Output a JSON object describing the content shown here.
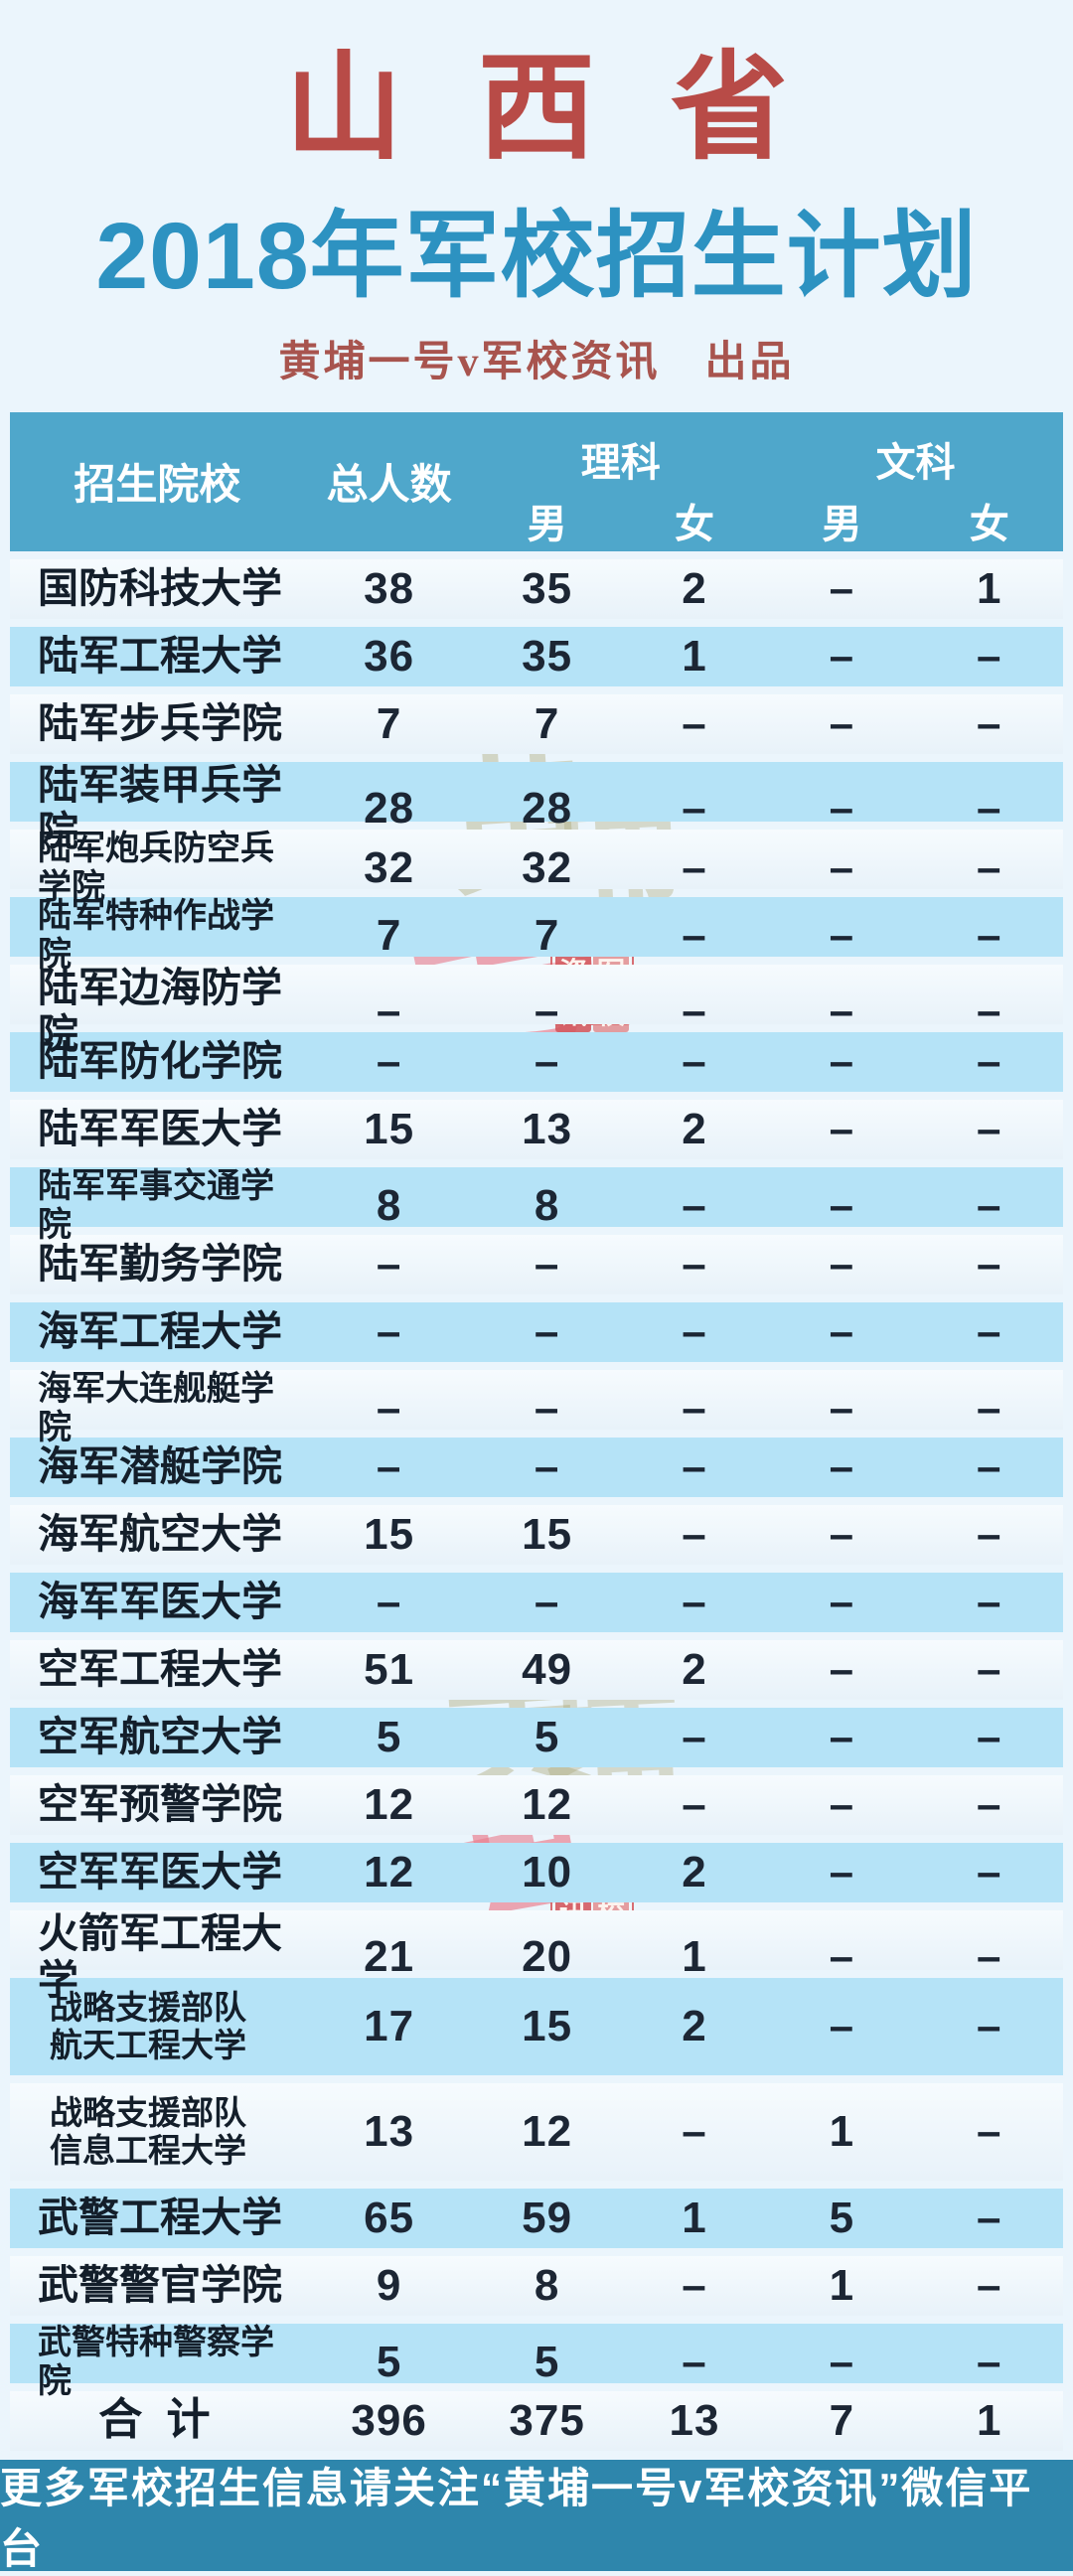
{
  "colors": {
    "page_bg": "#ebf5fc",
    "province_red": "#b84b47",
    "title_blue": "#2d92c1",
    "byline_red": "#a8544e",
    "table_header_bg": "#4fa7cb",
    "row_alt_bg": "#b5e3f7",
    "row_plain_bg": "#eef6fb",
    "footer_bg": "#2e86ac",
    "text_dark": "#1c2634"
  },
  "masthead": {
    "province": "山西省",
    "title": "2018年军校招生计划",
    "byline": "黄埔一号v军校资讯　出品"
  },
  "table": {
    "header": {
      "school": "招生院校",
      "total": "总人数",
      "science": "理科",
      "arts": "文科",
      "male": "男",
      "female": "女"
    },
    "rows": [
      {
        "school": "国防科技大学",
        "total": "38",
        "sci_male": "35",
        "sci_female": "2",
        "art_male": "–",
        "art_female": "1"
      },
      {
        "school": "陆军工程大学",
        "total": "36",
        "sci_male": "35",
        "sci_female": "1",
        "art_male": "–",
        "art_female": "–"
      },
      {
        "school": "陆军步兵学院",
        "total": "7",
        "sci_male": "7",
        "sci_female": "–",
        "art_male": "–",
        "art_female": "–"
      },
      {
        "school": "陆军装甲兵学院",
        "total": "28",
        "sci_male": "28",
        "sci_female": "–",
        "art_male": "–",
        "art_female": "–"
      },
      {
        "school": "陆军炮兵防空兵学院",
        "total": "32",
        "sci_male": "32",
        "sci_female": "–",
        "art_male": "–",
        "art_female": "–"
      },
      {
        "school": "陆军特种作战学院",
        "total": "7",
        "sci_male": "7",
        "sci_female": "–",
        "art_male": "–",
        "art_female": "–"
      },
      {
        "school": "陆军边海防学院",
        "total": "–",
        "sci_male": "–",
        "sci_female": "–",
        "art_male": "–",
        "art_female": "–"
      },
      {
        "school": "陆军防化学院",
        "total": "–",
        "sci_male": "–",
        "sci_female": "–",
        "art_male": "–",
        "art_female": "–"
      },
      {
        "school": "陆军军医大学",
        "total": "15",
        "sci_male": "13",
        "sci_female": "2",
        "art_male": "–",
        "art_female": "–"
      },
      {
        "school": "陆军军事交通学院",
        "total": "8",
        "sci_male": "8",
        "sci_female": "–",
        "art_male": "–",
        "art_female": "–"
      },
      {
        "school": "陆军勤务学院",
        "total": "–",
        "sci_male": "–",
        "sci_female": "–",
        "art_male": "–",
        "art_female": "–"
      },
      {
        "school": "海军工程大学",
        "total": "–",
        "sci_male": "–",
        "sci_female": "–",
        "art_male": "–",
        "art_female": "–"
      },
      {
        "school": "海军大连舰艇学院",
        "total": "–",
        "sci_male": "–",
        "sci_female": "–",
        "art_male": "–",
        "art_female": "–"
      },
      {
        "school": "海军潜艇学院",
        "total": "–",
        "sci_male": "–",
        "sci_female": "–",
        "art_male": "–",
        "art_female": "–"
      },
      {
        "school": "海军航空大学",
        "total": "15",
        "sci_male": "15",
        "sci_female": "–",
        "art_male": "–",
        "art_female": "–"
      },
      {
        "school": "海军军医大学",
        "total": "–",
        "sci_male": "–",
        "sci_female": "–",
        "art_male": "–",
        "art_female": "–"
      },
      {
        "school": "空军工程大学",
        "total": "51",
        "sci_male": "49",
        "sci_female": "2",
        "art_male": "–",
        "art_female": "–"
      },
      {
        "school": "空军航空大学",
        "total": "5",
        "sci_male": "5",
        "sci_female": "–",
        "art_male": "–",
        "art_female": "–"
      },
      {
        "school": "空军预警学院",
        "total": "12",
        "sci_male": "12",
        "sci_female": "–",
        "art_male": "–",
        "art_female": "–"
      },
      {
        "school": "空军军医大学",
        "total": "12",
        "sci_male": "10",
        "sci_female": "2",
        "art_male": "–",
        "art_female": "–"
      },
      {
        "school": "火箭军工程大学",
        "total": "21",
        "sci_male": "20",
        "sci_female": "1",
        "art_male": "–",
        "art_female": "–"
      },
      {
        "school": "战略支援部队\n航天工程大学",
        "total": "17",
        "sci_male": "15",
        "sci_female": "2",
        "art_male": "–",
        "art_female": "–"
      },
      {
        "school": "战略支援部队\n信息工程大学",
        "total": "13",
        "sci_male": "12",
        "sci_female": "–",
        "art_male": "1",
        "art_female": "–"
      },
      {
        "school": "武警工程大学",
        "total": "65",
        "sci_male": "59",
        "sci_female": "1",
        "art_male": "5",
        "art_female": "–"
      },
      {
        "school": "武警警官学院",
        "total": "9",
        "sci_male": "8",
        "sci_female": "–",
        "art_male": "1",
        "art_female": "–"
      },
      {
        "school": "武警特种警察学院",
        "total": "5",
        "sci_male": "5",
        "sci_female": "–",
        "art_male": "–",
        "art_female": "–"
      }
    ],
    "total_row": {
      "label": "合  计",
      "total": "396",
      "sci_male": "375",
      "sci_female": "13",
      "art_male": "7",
      "art_female": "1"
    }
  },
  "watermark": {
    "stroke1": "黄",
    "stroke2": "埔",
    "stroke3": "一",
    "stroke4": "号",
    "seal_tl": "资",
    "seal_tr": "军",
    "seal_bl": "讯",
    "seal_br": "校"
  },
  "footer": {
    "text": "更多军校招生信息请关注“黄埔一号v军校资讯”微信平台"
  }
}
